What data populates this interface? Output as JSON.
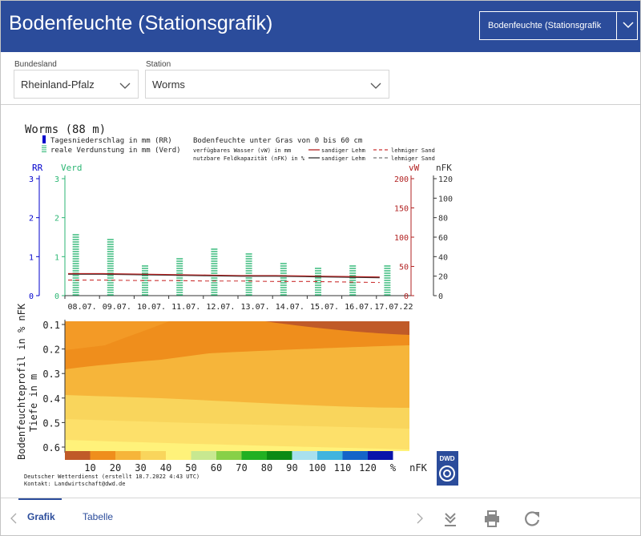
{
  "header": {
    "title": "Bodenfeuchte (Stationsgrafik)",
    "view_select": "Bodenfeuchte (Stationsgrafik"
  },
  "filters": {
    "bundesland_label": "Bundesland",
    "bundesland_value": "Rheinland-Pfalz",
    "station_label": "Station",
    "station_value": "Worms"
  },
  "chart_data": [
    {
      "type": "bar",
      "title": "Worms (88 m)",
      "legend_left": [
        "Tagesniederschlag in mm (RR)",
        "reale Verdunstung in mm (Verd)"
      ],
      "legend_right_title": "Bodenfeuchte unter Gras von 0 bis 60 cm",
      "legend_right_rows": [
        {
          "label": "verfügbares Wasser (vW) in mm",
          "a": "sandiger Lehm",
          "b": "lehmiger Sand"
        },
        {
          "label": "nutzbare Feldkapazität (nFK) in %",
          "a": "sandiger Lehm",
          "b": "lehmiger Sand"
        }
      ],
      "axis_labels": {
        "rr": "RR",
        "verd": "Verd",
        "vw": "vW",
        "nfk": "nFK"
      },
      "rr_ticks": [
        "0",
        "1",
        "2",
        "3"
      ],
      "verd_ticks": [
        "0",
        "1",
        "2",
        "3"
      ],
      "vw_ticks": [
        "0",
        "50",
        "100",
        "150",
        "200"
      ],
      "nfk_ticks": [
        "0",
        "20",
        "40",
        "60",
        "80",
        "100",
        "120"
      ],
      "categories": [
        "08.07.",
        "09.07.",
        "10.07.",
        "11.07.",
        "12.07.",
        "13.07.",
        "14.07.",
        "15.07.",
        "16.07.",
        "17.07.22"
      ],
      "series": [
        {
          "name": "Tagesniederschlag in mm (RR)",
          "values": [
            0,
            0,
            0,
            0,
            0,
            0,
            0,
            0,
            0,
            0
          ]
        },
        {
          "name": "reale Verdunstung in mm (Verd)",
          "values": [
            1.6,
            1.5,
            0.8,
            1.0,
            1.2,
            1.1,
            0.85,
            0.7,
            0.8,
            0.8
          ]
        }
      ],
      "ylim_rr": [
        0,
        3
      ],
      "ylim_vw": [
        0,
        200
      ],
      "ylim_nfk": [
        0,
        120
      ],
      "colors": {
        "rr": "#0000cc",
        "verd": "#2bb673",
        "vw_sandiger": "#b22222",
        "nfk_sandiger": "#333333",
        "lehmiger": "#cc3333"
      }
    },
    {
      "type": "heatmap",
      "ylabel": "Bodenfeuchteprofil in % nFK",
      "ylabel2": "Tiefe in m",
      "y_ticks": [
        "0.1",
        "0.2",
        "0.3",
        "0.4",
        "0.5",
        "0.6"
      ],
      "ylim": [
        0.6,
        0.1
      ],
      "colorbar": {
        "labels": [
          "10",
          "20",
          "30",
          "40",
          "50",
          "60",
          "70",
          "80",
          "90",
          "100",
          "110",
          "120",
          "%",
          "nFK"
        ],
        "colors": [
          "#c05a28",
          "#ef8e1c",
          "#f6b53a",
          "#f9d55c",
          "#fff27a",
          "#c8e890",
          "#88d048",
          "#22b022",
          "#0b8a14",
          "#a8e0ee",
          "#40b4de",
          "#1464c8",
          "#0a14aa"
        ]
      }
    }
  ],
  "footer": {
    "credit": "Deutscher Wetterdienst (erstellt 18.7.2022 4:43 UTC)",
    "contact": "Kontakt: Landwirtschaft@dwd.de",
    "logo_text": "DWD"
  },
  "tabs": [
    {
      "label": "Grafik"
    },
    {
      "label": "Tabelle"
    }
  ]
}
